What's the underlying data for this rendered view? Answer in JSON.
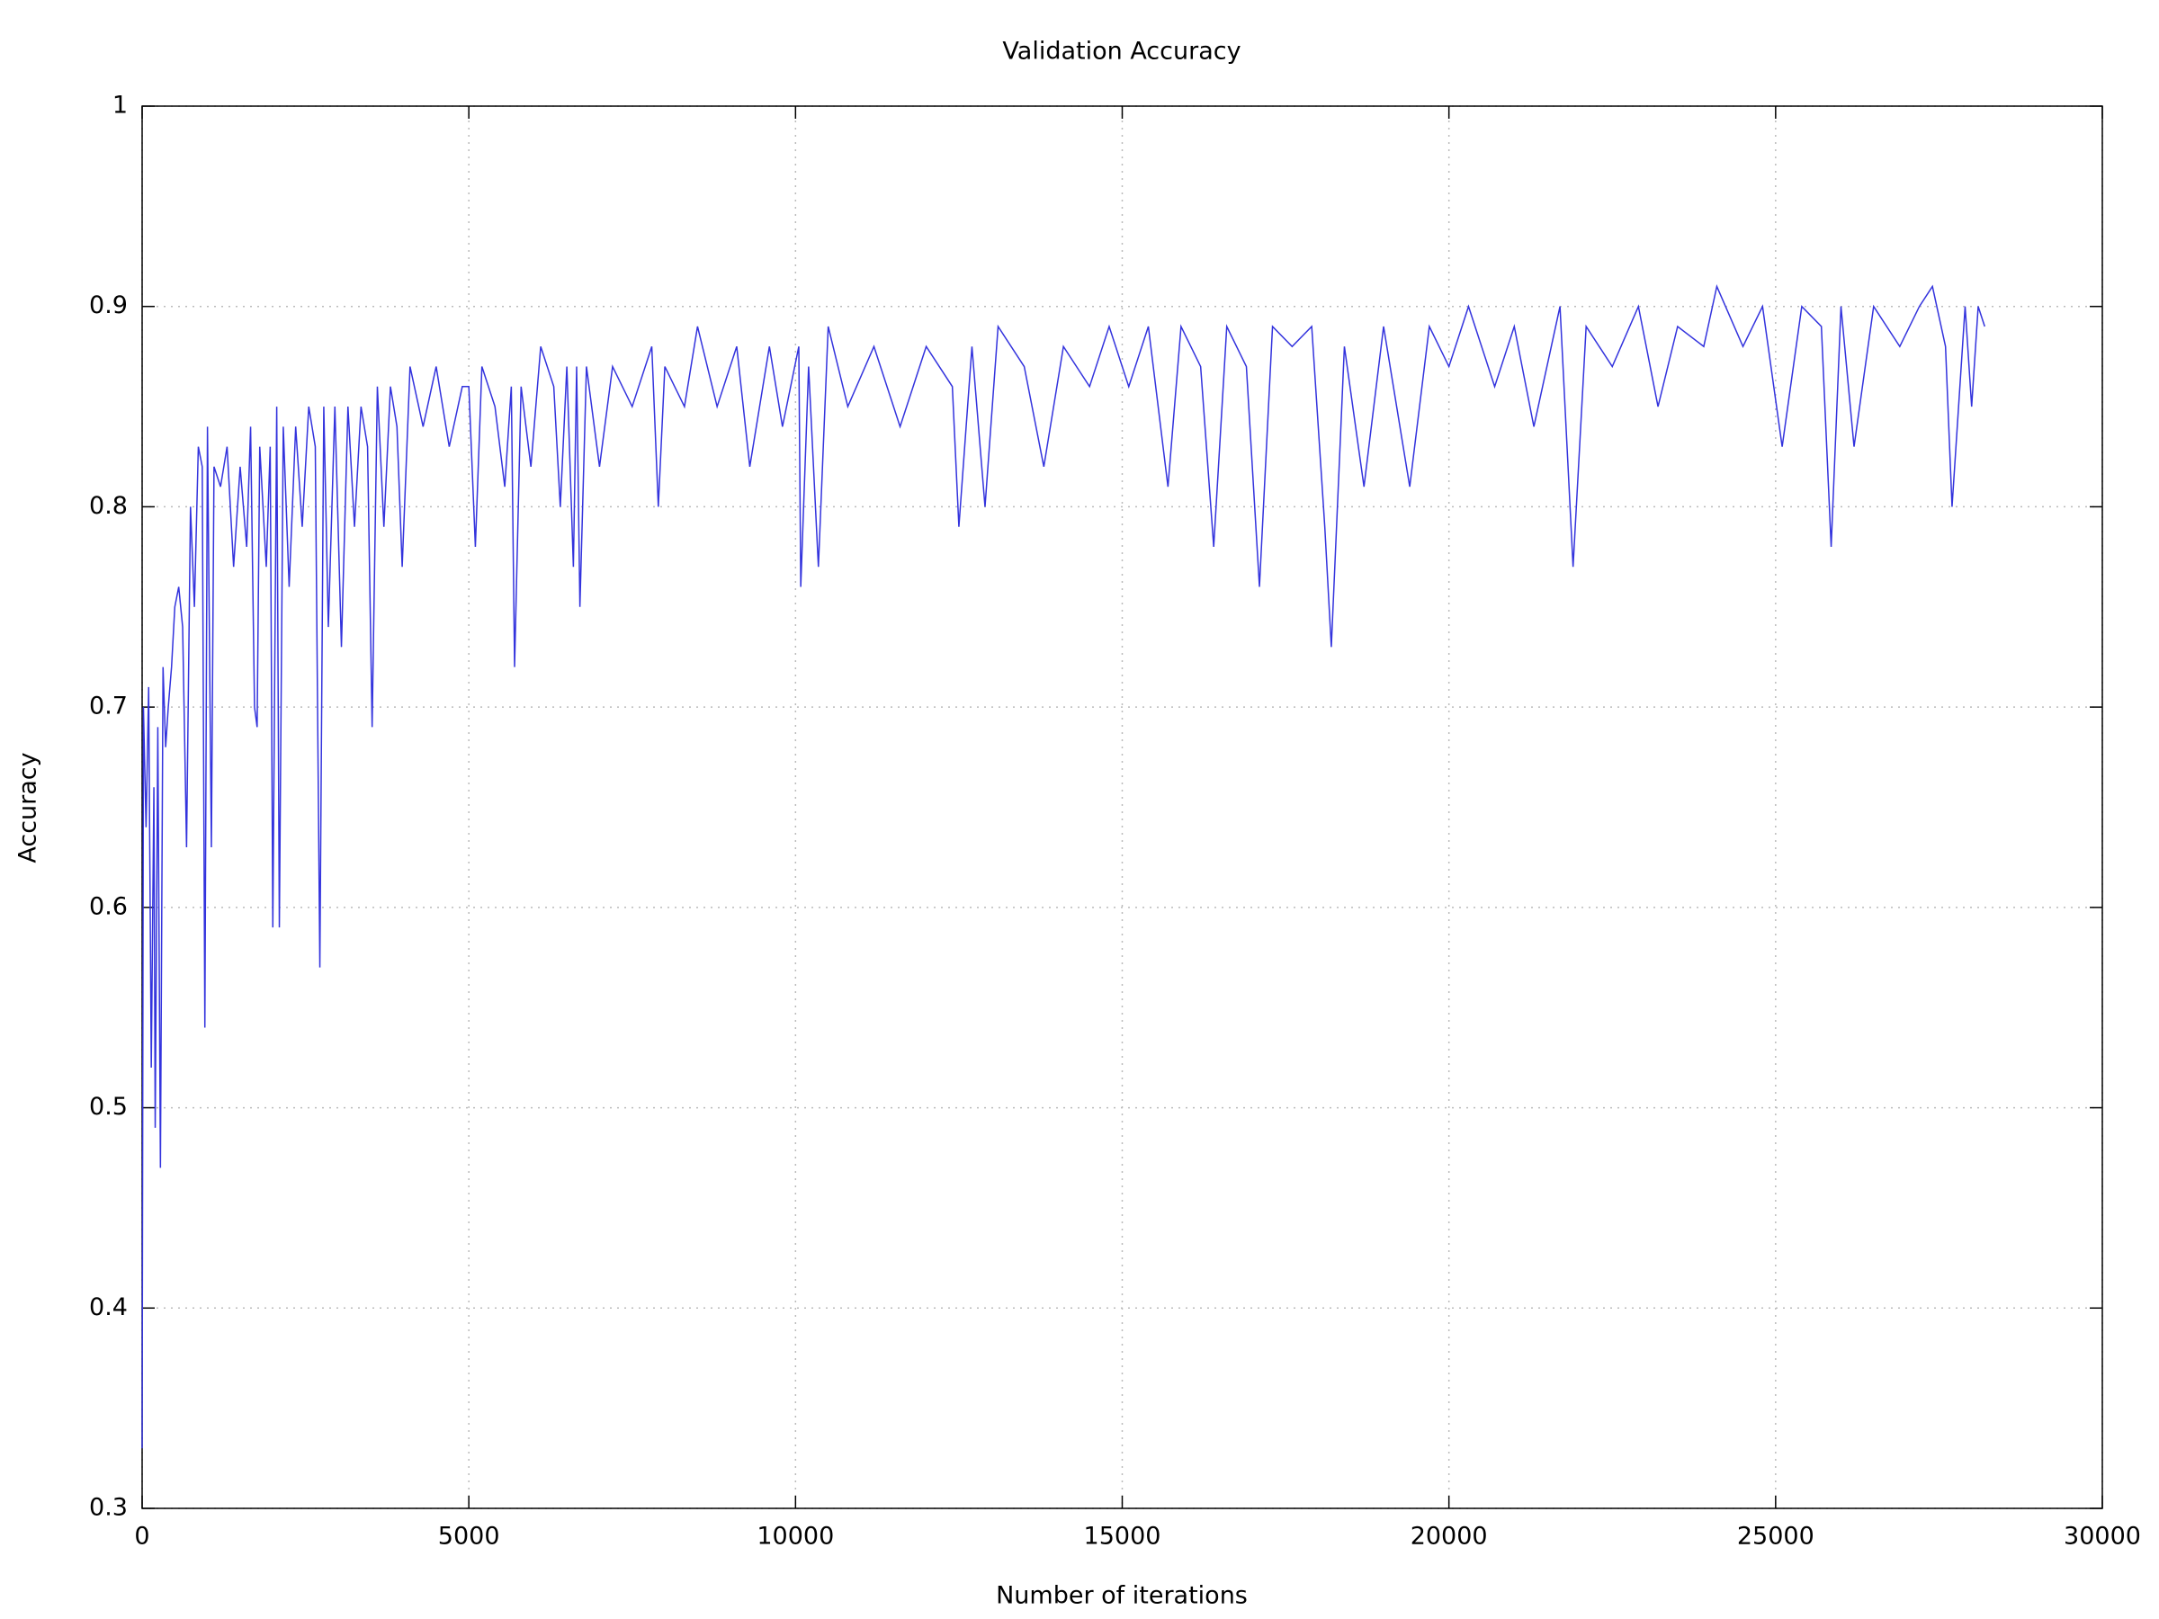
{
  "chart_data": {
    "type": "line",
    "title": "Validation Accuracy",
    "x_label": "Number of iterations",
    "y_label": "Accuracy",
    "color": "#3333dd",
    "grid": true,
    "xlim": [
      0,
      30000
    ],
    "xticks": [
      0,
      5000,
      10000,
      15000,
      20000,
      25000,
      30000
    ],
    "ylim": [
      0.3,
      1
    ],
    "yticks": [
      0.3,
      0.4,
      0.5,
      0.6,
      0.7,
      0.8,
      0.9,
      1
    ],
    "x": [
      0,
      20,
      60,
      100,
      140,
      180,
      200,
      240,
      280,
      320,
      360,
      400,
      450,
      500,
      560,
      620,
      680,
      740,
      800,
      860,
      920,
      960,
      1000,
      1060,
      1100,
      1200,
      1300,
      1400,
      1500,
      1600,
      1660,
      1720,
      1760,
      1800,
      1900,
      1960,
      2000,
      2060,
      2100,
      2160,
      2250,
      2350,
      2450,
      2550,
      2650,
      2720,
      2780,
      2850,
      2950,
      3050,
      3150,
      3250,
      3350,
      3450,
      3520,
      3600,
      3700,
      3800,
      3900,
      3980,
      4100,
      4300,
      4500,
      4700,
      4900,
      5000,
      5100,
      5200,
      5400,
      5550,
      5650,
      5700,
      5800,
      5950,
      6100,
      6300,
      6400,
      6500,
      6600,
      6650,
      6700,
      6800,
      7000,
      7200,
      7500,
      7800,
      7900,
      8000,
      8300,
      8500,
      8800,
      9100,
      9300,
      9600,
      9800,
      10050,
      10080,
      10200,
      10350,
      10500,
      10800,
      11200,
      11600,
      12000,
      12400,
      12500,
      12700,
      12900,
      13100,
      13500,
      13800,
      14100,
      14500,
      14800,
      15100,
      15400,
      15700,
      15900,
      16200,
      16400,
      16600,
      16900,
      17100,
      17300,
      17600,
      17900,
      18100,
      18200,
      18400,
      18700,
      19000,
      19400,
      19700,
      20000,
      20300,
      20700,
      21000,
      21300,
      21700,
      21900,
      22100,
      22500,
      22900,
      23200,
      23500,
      23900,
      24100,
      24500,
      24800,
      25100,
      25400,
      25700,
      25850,
      26000,
      26200,
      26500,
      26900,
      27200,
      27400,
      27600,
      27700,
      27900,
      28000,
      28100,
      28200
    ],
    "values": [
      0.33,
      0.7,
      0.64,
      0.71,
      0.52,
      0.66,
      0.49,
      0.69,
      0.47,
      0.72,
      0.68,
      0.7,
      0.72,
      0.75,
      0.76,
      0.74,
      0.63,
      0.8,
      0.75,
      0.83,
      0.82,
      0.54,
      0.84,
      0.63,
      0.82,
      0.81,
      0.83,
      0.77,
      0.82,
      0.78,
      0.84,
      0.7,
      0.69,
      0.83,
      0.77,
      0.83,
      0.59,
      0.85,
      0.59,
      0.84,
      0.76,
      0.84,
      0.79,
      0.85,
      0.83,
      0.57,
      0.85,
      0.74,
      0.85,
      0.73,
      0.85,
      0.79,
      0.85,
      0.83,
      0.69,
      0.86,
      0.79,
      0.86,
      0.84,
      0.77,
      0.87,
      0.84,
      0.87,
      0.83,
      0.86,
      0.86,
      0.78,
      0.87,
      0.85,
      0.81,
      0.86,
      0.72,
      0.86,
      0.82,
      0.88,
      0.86,
      0.8,
      0.87,
      0.77,
      0.87,
      0.75,
      0.87,
      0.82,
      0.87,
      0.85,
      0.88,
      0.8,
      0.87,
      0.85,
      0.89,
      0.85,
      0.88,
      0.82,
      0.88,
      0.84,
      0.88,
      0.76,
      0.87,
      0.77,
      0.89,
      0.85,
      0.88,
      0.84,
      0.88,
      0.86,
      0.79,
      0.88,
      0.8,
      0.89,
      0.87,
      0.82,
      0.88,
      0.86,
      0.89,
      0.86,
      0.89,
      0.81,
      0.89,
      0.87,
      0.78,
      0.89,
      0.87,
      0.76,
      0.89,
      0.88,
      0.89,
      0.79,
      0.73,
      0.88,
      0.81,
      0.89,
      0.81,
      0.89,
      0.87,
      0.9,
      0.86,
      0.89,
      0.84,
      0.9,
      0.77,
      0.89,
      0.87,
      0.9,
      0.85,
      0.89,
      0.88,
      0.91,
      0.88,
      0.9,
      0.83,
      0.9,
      0.89,
      0.78,
      0.9,
      0.83,
      0.9,
      0.88,
      0.9,
      0.91,
      0.88,
      0.8,
      0.9,
      0.85,
      0.9,
      0.89
    ]
  }
}
